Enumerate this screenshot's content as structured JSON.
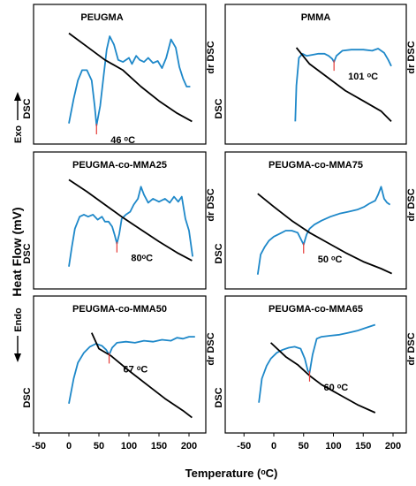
{
  "figure": {
    "ylabel": "Heat Flow (mV)",
    "xlabel": "Temperature (ᵒC)",
    "exo_label": "Exo",
    "endo_label": "Endo",
    "xticks": [
      "-50",
      "0",
      "50",
      "100",
      "150",
      "200"
    ],
    "colors": {
      "dsc": "#1e88c9",
      "dr_dsc": "#000000",
      "marker": "#e53935",
      "frame": "#000000"
    }
  },
  "chart_data": [
    {
      "type": "line",
      "title": "PEUGMA",
      "left_label": "DSC",
      "right_label": "dr DSC",
      "annotation": "46 ᵒC",
      "peak_x": 46,
      "xlim": [
        -50,
        220
      ],
      "ylim": [
        0,
        1
      ],
      "series": [
        {
          "role": "dsc",
          "x": [
            0,
            8,
            15,
            22,
            30,
            38,
            43,
            46,
            52,
            58,
            63,
            68,
            75,
            82,
            90,
            100,
            105,
            112,
            118,
            125,
            132,
            140,
            148,
            155,
            162,
            170,
            178,
            184,
            190,
            196,
            202
          ],
          "y": [
            0.08,
            0.32,
            0.5,
            0.6,
            0.6,
            0.5,
            0.25,
            0.06,
            0.25,
            0.55,
            0.8,
            0.93,
            0.85,
            0.7,
            0.68,
            0.72,
            0.66,
            0.74,
            0.7,
            0.68,
            0.72,
            0.67,
            0.69,
            0.62,
            0.72,
            0.9,
            0.82,
            0.63,
            0.52,
            0.44,
            0.44
          ]
        },
        {
          "role": "dr_dsc",
          "x": [
            0,
            30,
            60,
            90,
            120,
            150,
            180,
            205
          ],
          "y": [
            0.96,
            0.83,
            0.7,
            0.6,
            0.44,
            0.3,
            0.18,
            0.1
          ]
        }
      ]
    },
    {
      "type": "line",
      "title": "PMMA",
      "left_label": "DSC",
      "right_label": "dr DSC",
      "annotation": "101 ᵒC",
      "peak_x": 101,
      "xlim": [
        -50,
        220
      ],
      "ylim": [
        0,
        1
      ],
      "series": [
        {
          "role": "dsc",
          "x": [
            36,
            38,
            42,
            48,
            55,
            65,
            75,
            85,
            92,
            98,
            101,
            105,
            115,
            130,
            150,
            165,
            175,
            185,
            192,
            197
          ],
          "y": [
            0.1,
            0.45,
            0.72,
            0.76,
            0.74,
            0.75,
            0.76,
            0.76,
            0.74,
            0.71,
            0.68,
            0.74,
            0.79,
            0.8,
            0.8,
            0.79,
            0.81,
            0.77,
            0.7,
            0.64
          ]
        },
        {
          "role": "dr_dsc",
          "x": [
            38,
            60,
            90,
            120,
            150,
            180,
            197
          ],
          "y": [
            0.82,
            0.66,
            0.53,
            0.4,
            0.3,
            0.2,
            0.1
          ]
        }
      ]
    },
    {
      "type": "line",
      "title": "PEUGMA-co-MMA25",
      "left_label": "DSC",
      "right_label": "dr DSC",
      "annotation": "80ᵒC",
      "peak_x": 80,
      "xlim": [
        -50,
        220
      ],
      "ylim": [
        0,
        1
      ],
      "series": [
        {
          "role": "dsc",
          "x": [
            0,
            5,
            10,
            18,
            25,
            32,
            40,
            48,
            55,
            60,
            66,
            72,
            76,
            80,
            84,
            88,
            95,
            102,
            108,
            115,
            120,
            125,
            132,
            140,
            150,
            160,
            168,
            175,
            182,
            188,
            194,
            200,
            206
          ],
          "y": [
            0.1,
            0.3,
            0.48,
            0.6,
            0.62,
            0.6,
            0.62,
            0.57,
            0.6,
            0.55,
            0.55,
            0.5,
            0.42,
            0.33,
            0.43,
            0.58,
            0.62,
            0.65,
            0.72,
            0.78,
            0.9,
            0.82,
            0.74,
            0.78,
            0.75,
            0.78,
            0.74,
            0.8,
            0.75,
            0.8,
            0.58,
            0.46,
            0.2
          ]
        },
        {
          "role": "dr_dsc",
          "x": [
            0,
            30,
            60,
            90,
            120,
            150,
            180,
            205
          ],
          "y": [
            0.97,
            0.85,
            0.72,
            0.59,
            0.47,
            0.35,
            0.24,
            0.16
          ]
        }
      ]
    },
    {
      "type": "line",
      "title": "PEUGMA-co-MMA75",
      "left_label": "DSC",
      "right_label": "dr DSC",
      "annotation": "50 ᵒC",
      "peak_x": 50,
      "xlim": [
        -50,
        220
      ],
      "ylim": [
        0,
        1
      ],
      "series": [
        {
          "role": "dsc",
          "x": [
            -27,
            -22,
            -15,
            -8,
            0,
            10,
            20,
            30,
            40,
            45,
            50,
            55,
            60,
            68,
            80,
            95,
            110,
            125,
            140,
            152,
            160,
            170,
            175,
            180,
            185,
            190,
            195
          ],
          "y": [
            0.02,
            0.22,
            0.3,
            0.36,
            0.4,
            0.43,
            0.46,
            0.46,
            0.44,
            0.38,
            0.32,
            0.42,
            0.48,
            0.52,
            0.56,
            0.6,
            0.63,
            0.65,
            0.67,
            0.7,
            0.73,
            0.76,
            0.82,
            0.9,
            0.78,
            0.74,
            0.72
          ]
        },
        {
          "role": "dr_dsc",
          "x": [
            -27,
            0,
            30,
            60,
            90,
            120,
            150,
            180,
            198
          ],
          "y": [
            0.83,
            0.7,
            0.56,
            0.44,
            0.34,
            0.24,
            0.15,
            0.08,
            0.03
          ]
        }
      ]
    },
    {
      "type": "line",
      "title": "PEUGMA-co-MMA50",
      "left_label": "DSC",
      "right_label": "dr DSC",
      "annotation": "67 ᵒC",
      "peak_x": 67,
      "xlim": [
        -50,
        220
      ],
      "ylim": [
        0,
        1
      ],
      "series": [
        {
          "role": "dsc",
          "x": [
            0,
            8,
            15,
            25,
            35,
            45,
            55,
            62,
            67,
            72,
            80,
            95,
            110,
            125,
            140,
            155,
            170,
            180,
            190,
            200,
            210
          ],
          "y": [
            0.17,
            0.42,
            0.58,
            0.68,
            0.74,
            0.77,
            0.75,
            0.71,
            0.66,
            0.73,
            0.78,
            0.79,
            0.78,
            0.8,
            0.79,
            0.81,
            0.8,
            0.83,
            0.82,
            0.84,
            0.84
          ]
        },
        {
          "role": "dr_dsc",
          "x": [
            38,
            50,
            70,
            100,
            130,
            160,
            190,
            205
          ],
          "y": [
            0.88,
            0.72,
            0.65,
            0.5,
            0.36,
            0.22,
            0.1,
            0.03
          ]
        }
      ]
    },
    {
      "type": "line",
      "title": "PEUGMA-co-MMA65",
      "left_label": "DSC",
      "right_label": "dr DSC",
      "annotation": "60 ᵒC",
      "peak_x": 60,
      "xlim": [
        -50,
        220
      ],
      "ylim": [
        0,
        1
      ],
      "series": [
        {
          "role": "dsc",
          "x": [
            -25,
            -20,
            -12,
            -5,
            5,
            15,
            25,
            35,
            45,
            52,
            57,
            60,
            65,
            72,
            80,
            95,
            110,
            125,
            140,
            155,
            170
          ],
          "y": [
            0.18,
            0.42,
            0.55,
            0.62,
            0.68,
            0.71,
            0.73,
            0.74,
            0.72,
            0.62,
            0.5,
            0.48,
            0.66,
            0.82,
            0.84,
            0.85,
            0.86,
            0.88,
            0.9,
            0.93,
            0.96
          ]
        },
        {
          "role": "dr_dsc",
          "x": [
            -5,
            20,
            40,
            60,
            80,
            110,
            140,
            170
          ],
          "y": [
            0.78,
            0.64,
            0.56,
            0.45,
            0.36,
            0.26,
            0.16,
            0.08
          ]
        }
      ]
    }
  ]
}
